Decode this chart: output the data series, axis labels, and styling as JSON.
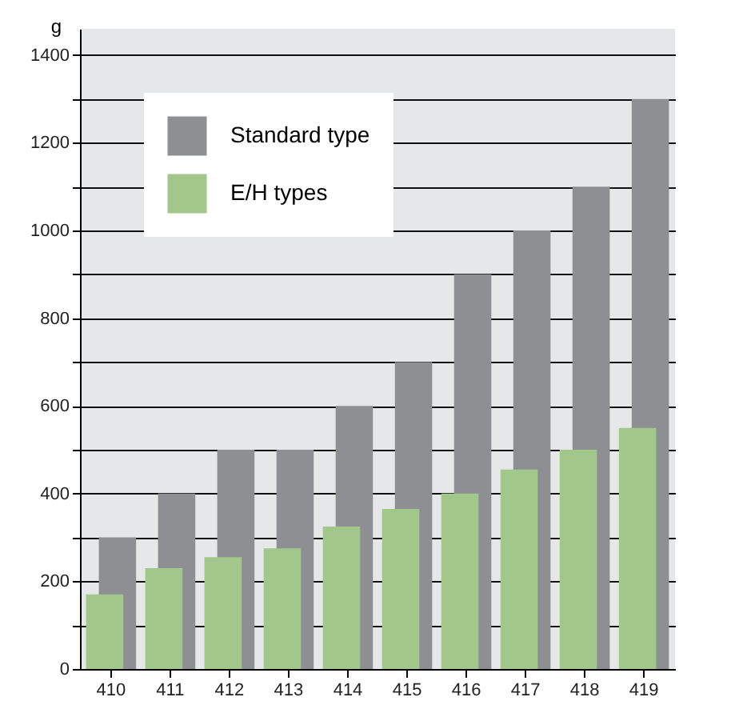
{
  "chart_data": {
    "type": "bar",
    "ylabel": "g",
    "categories": [
      "410",
      "411",
      "412",
      "413",
      "414",
      "415",
      "416",
      "417",
      "418",
      "419"
    ],
    "series": [
      {
        "name": "Standard type",
        "color": "#8e8f93",
        "values": [
          300,
          400,
          500,
          500,
          600,
          700,
          900,
          1000,
          1100,
          1300
        ]
      },
      {
        "name": "E/H types",
        "color": "#a1c78a",
        "values": [
          170,
          230,
          255,
          275,
          325,
          365,
          400,
          455,
          500,
          550
        ]
      }
    ],
    "ylim": [
      0,
      1460
    ],
    "yticks": [
      0,
      {
        "value": 100,
        "label": null
      },
      200,
      {
        "value": 300,
        "label": null
      },
      400,
      {
        "value": 500,
        "label": null
      },
      600,
      {
        "value": 700,
        "label": null
      },
      800,
      {
        "value": 900,
        "label": null
      },
      1000,
      {
        "value": 1100,
        "label": null
      },
      1200,
      {
        "value": 1300,
        "label": null
      },
      1400
    ],
    "grid": "y",
    "legend": "top left"
  }
}
